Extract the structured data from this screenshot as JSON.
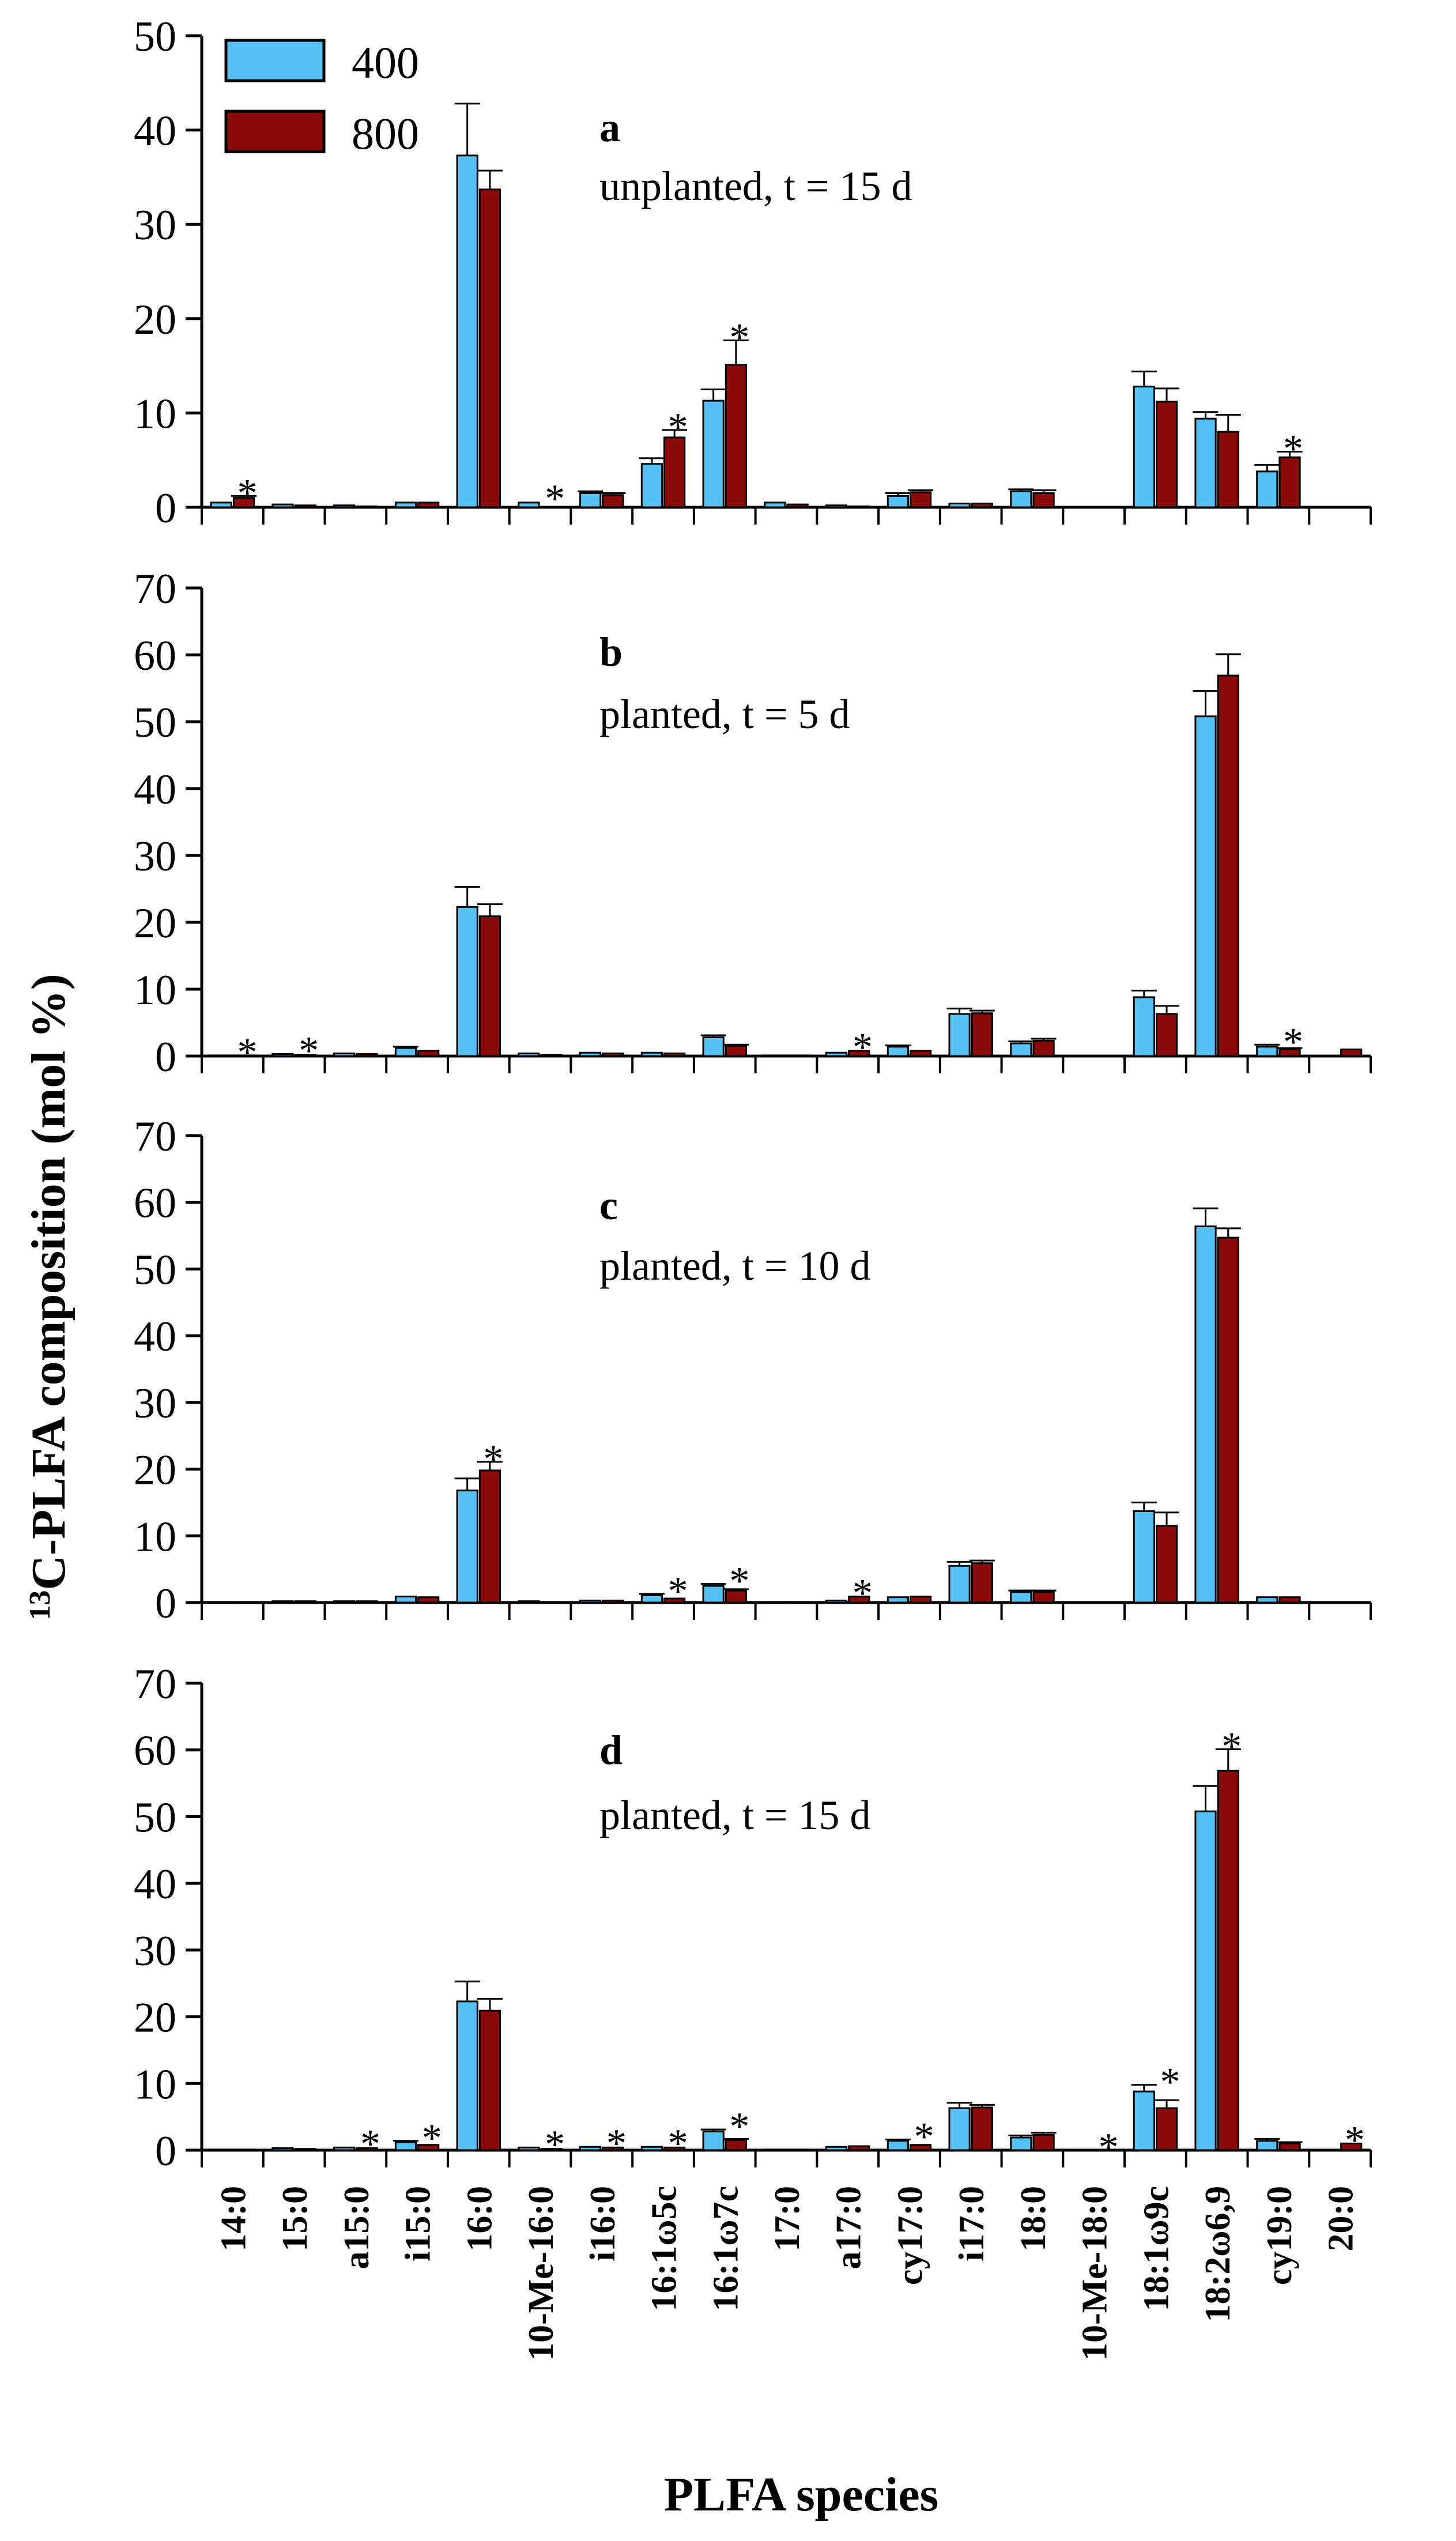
{
  "figure": {
    "ylabel_super": "13",
    "ylabel_main": "C-PLFA composition (mol %)",
    "xlabel": "PLFA species",
    "legend": [
      {
        "label": "400",
        "color": "#55C1F5"
      },
      {
        "label": "800",
        "color": "#8B0A0A"
      }
    ]
  },
  "chart_data": [
    {
      "type": "bar",
      "panel": "a",
      "subtitle": "unplanted, t = 15 d",
      "ylim": [
        0,
        50
      ],
      "yticks": [
        0,
        10,
        20,
        30,
        40,
        50
      ],
      "categories": [
        "14:0",
        "15:0",
        "a15:0",
        "i15:0",
        "16:0",
        "10-Me-16:0",
        "i16:0",
        "16:1ω5c",
        "16:1ω7c",
        "17:0",
        "a17:0",
        "cy17:0",
        "i17:0",
        "18:0",
        "10-Me-18:0",
        "18:1ω9c",
        "18:2ω6,9",
        "cy19:0",
        "20:0"
      ],
      "series": [
        {
          "name": "400",
          "values": [
            0.5,
            0.3,
            0.2,
            0.5,
            37.3,
            0.5,
            1.5,
            4.6,
            11.3,
            0.5,
            0.2,
            1.2,
            0.4,
            1.7,
            0,
            12.8,
            9.4,
            3.8,
            0
          ],
          "errors": [
            0.1,
            0.1,
            0.1,
            0.1,
            5.5,
            0.1,
            0.2,
            0.6,
            1.2,
            0.1,
            0.05,
            0.3,
            0.1,
            0.2,
            0,
            1.6,
            0.7,
            0.7,
            0
          ]
        },
        {
          "name": "800",
          "values": [
            1.0,
            0.2,
            0.1,
            0.5,
            33.7,
            0,
            1.3,
            7.4,
            15.1,
            0.3,
            0.1,
            1.6,
            0.4,
            1.5,
            0,
            11.2,
            8.0,
            5.3,
            0
          ],
          "errors": [
            0.2,
            0.05,
            0.05,
            0.1,
            2.0,
            0,
            0.2,
            0.8,
            2.6,
            0.05,
            0.05,
            0.2,
            0.1,
            0.3,
            0,
            1.4,
            1.8,
            0.6,
            0
          ]
        }
      ],
      "stars": [
        "14:0",
        "10-Me-16:0",
        "16:1ω5c",
        "16:1ω7c",
        "cy19:0"
      ]
    },
    {
      "type": "bar",
      "panel": "b",
      "subtitle": "planted, t = 5 d",
      "ylim": [
        0,
        70
      ],
      "yticks": [
        0,
        10,
        20,
        30,
        40,
        50,
        60,
        70
      ],
      "categories": [
        "14:0",
        "15:0",
        "a15:0",
        "i15:0",
        "16:0",
        "10-Me-16:0",
        "i16:0",
        "16:1ω5c",
        "16:1ω7c",
        "17:0",
        "a17:0",
        "cy17:0",
        "i17:0",
        "18:0",
        "10-Me-18:0",
        "18:1ω9c",
        "18:2ω6,9",
        "cy19:0",
        "20:0"
      ],
      "series": [
        {
          "name": "400",
          "values": [
            0.1,
            0.3,
            0.4,
            1.2,
            22.3,
            0.4,
            0.5,
            0.5,
            2.8,
            0.1,
            0.5,
            1.4,
            6.3,
            1.9,
            0,
            8.8,
            50.8,
            1.4,
            0
          ],
          "errors": [
            0.05,
            0.1,
            0.1,
            0.2,
            3.0,
            0.05,
            0.1,
            0.1,
            0.3,
            0.05,
            0.1,
            0.2,
            0.8,
            0.3,
            0,
            1.0,
            3.8,
            0.3,
            0
          ]
        },
        {
          "name": "800",
          "values": [
            0.1,
            0.2,
            0.3,
            0.8,
            20.9,
            0.2,
            0.4,
            0.4,
            1.5,
            0.1,
            0.8,
            0.8,
            6.4,
            2.3,
            0,
            6.3,
            56.9,
            1.0,
            1.0
          ],
          "errors": [
            0.05,
            0.05,
            0.05,
            0.1,
            1.8,
            0.05,
            0.05,
            0.05,
            0.2,
            0.05,
            0.1,
            0.1,
            0.4,
            0.3,
            0,
            1.2,
            3.2,
            0.2,
            0.1
          ]
        }
      ],
      "stars": [
        "14:0",
        "15:0",
        "a17:0",
        "cy19:0"
      ]
    },
    {
      "type": "bar",
      "panel": "c",
      "subtitle": "planted, t = 10 d",
      "ylim": [
        0,
        70
      ],
      "yticks": [
        0,
        10,
        20,
        30,
        40,
        50,
        60,
        70
      ],
      "categories": [
        "14:0",
        "15:0",
        "a15:0",
        "i15:0",
        "16:0",
        "10-Me-16:0",
        "i16:0",
        "16:1ω5c",
        "16:1ω7c",
        "17:0",
        "a17:0",
        "cy17:0",
        "i17:0",
        "18:0",
        "10-Me-18:0",
        "18:1ω9c",
        "18:2ω6,9",
        "cy19:0",
        "20:0"
      ],
      "series": [
        {
          "name": "400",
          "values": [
            0.1,
            0.2,
            0.2,
            0.9,
            16.8,
            0.2,
            0.3,
            1.1,
            2.5,
            0.1,
            0.3,
            0.8,
            5.5,
            1.6,
            0,
            13.7,
            56.4,
            0.8,
            0
          ],
          "errors": [
            0.05,
            0.05,
            0.05,
            0.1,
            1.8,
            0.05,
            0.05,
            0.2,
            0.3,
            0.05,
            0.05,
            0.1,
            0.6,
            0.2,
            0,
            1.3,
            2.7,
            0.1,
            0
          ]
        },
        {
          "name": "800",
          "values": [
            0.1,
            0.2,
            0.2,
            0.8,
            19.8,
            0.1,
            0.3,
            0.6,
            1.8,
            0.1,
            0.9,
            0.9,
            5.9,
            1.6,
            0,
            11.5,
            54.7,
            0.8,
            0
          ],
          "errors": [
            0.05,
            0.05,
            0.05,
            0.1,
            1.3,
            0.05,
            0.05,
            0.1,
            0.2,
            0.05,
            0.1,
            0.1,
            0.4,
            0.2,
            0,
            2.0,
            1.4,
            0.1,
            0
          ]
        }
      ],
      "stars": [
        "16:0",
        "16:1ω5c",
        "16:1ω7c",
        "a17:0"
      ]
    },
    {
      "type": "bar",
      "panel": "d",
      "subtitle": "planted, t = 15 d",
      "ylim": [
        0,
        70
      ],
      "yticks": [
        0,
        10,
        20,
        30,
        40,
        50,
        60,
        70
      ],
      "categories": [
        "14:0",
        "15:0",
        "a15:0",
        "i15:0",
        "16:0",
        "10-Me-16:0",
        "i16:0",
        "16:1ω5c",
        "16:1ω7c",
        "17:0",
        "a17:0",
        "cy17:0",
        "i17:0",
        "18:0",
        "10-Me-18:0",
        "18:1ω9c",
        "18:2ω6,9",
        "cy19:0",
        "20:0"
      ],
      "series": [
        {
          "name": "400",
          "values": [
            0.1,
            0.3,
            0.4,
            1.2,
            22.3,
            0.4,
            0.5,
            0.5,
            2.8,
            0.1,
            0.5,
            1.4,
            6.3,
            1.9,
            0,
            8.8,
            50.8,
            1.4,
            0
          ],
          "errors": [
            0.05,
            0.1,
            0.1,
            0.2,
            3.0,
            0.05,
            0.1,
            0.1,
            0.3,
            0.05,
            0.1,
            0.2,
            0.8,
            0.3,
            0,
            1.0,
            3.8,
            0.3,
            0
          ]
        },
        {
          "name": "800",
          "values": [
            0.1,
            0.2,
            0.3,
            0.8,
            20.9,
            0.2,
            0.4,
            0.4,
            1.5,
            0.1,
            0.6,
            0.8,
            6.4,
            2.3,
            0,
            6.3,
            56.9,
            1.0,
            1.0
          ],
          "errors": [
            0.05,
            0.05,
            0.05,
            0.1,
            1.8,
            0.05,
            0.05,
            0.05,
            0.2,
            0.05,
            0.1,
            0.1,
            0.4,
            0.3,
            0,
            1.2,
            3.2,
            0.2,
            0.1
          ]
        }
      ],
      "stars": [
        "a15:0",
        "i15:0",
        "10-Me-16:0",
        "i16:0",
        "16:1ω5c",
        "16:1ω7c",
        "cy17:0",
        "10-Me-18:0",
        "18:1ω9c",
        "18:2ω6,9",
        "20:0"
      ]
    }
  ]
}
